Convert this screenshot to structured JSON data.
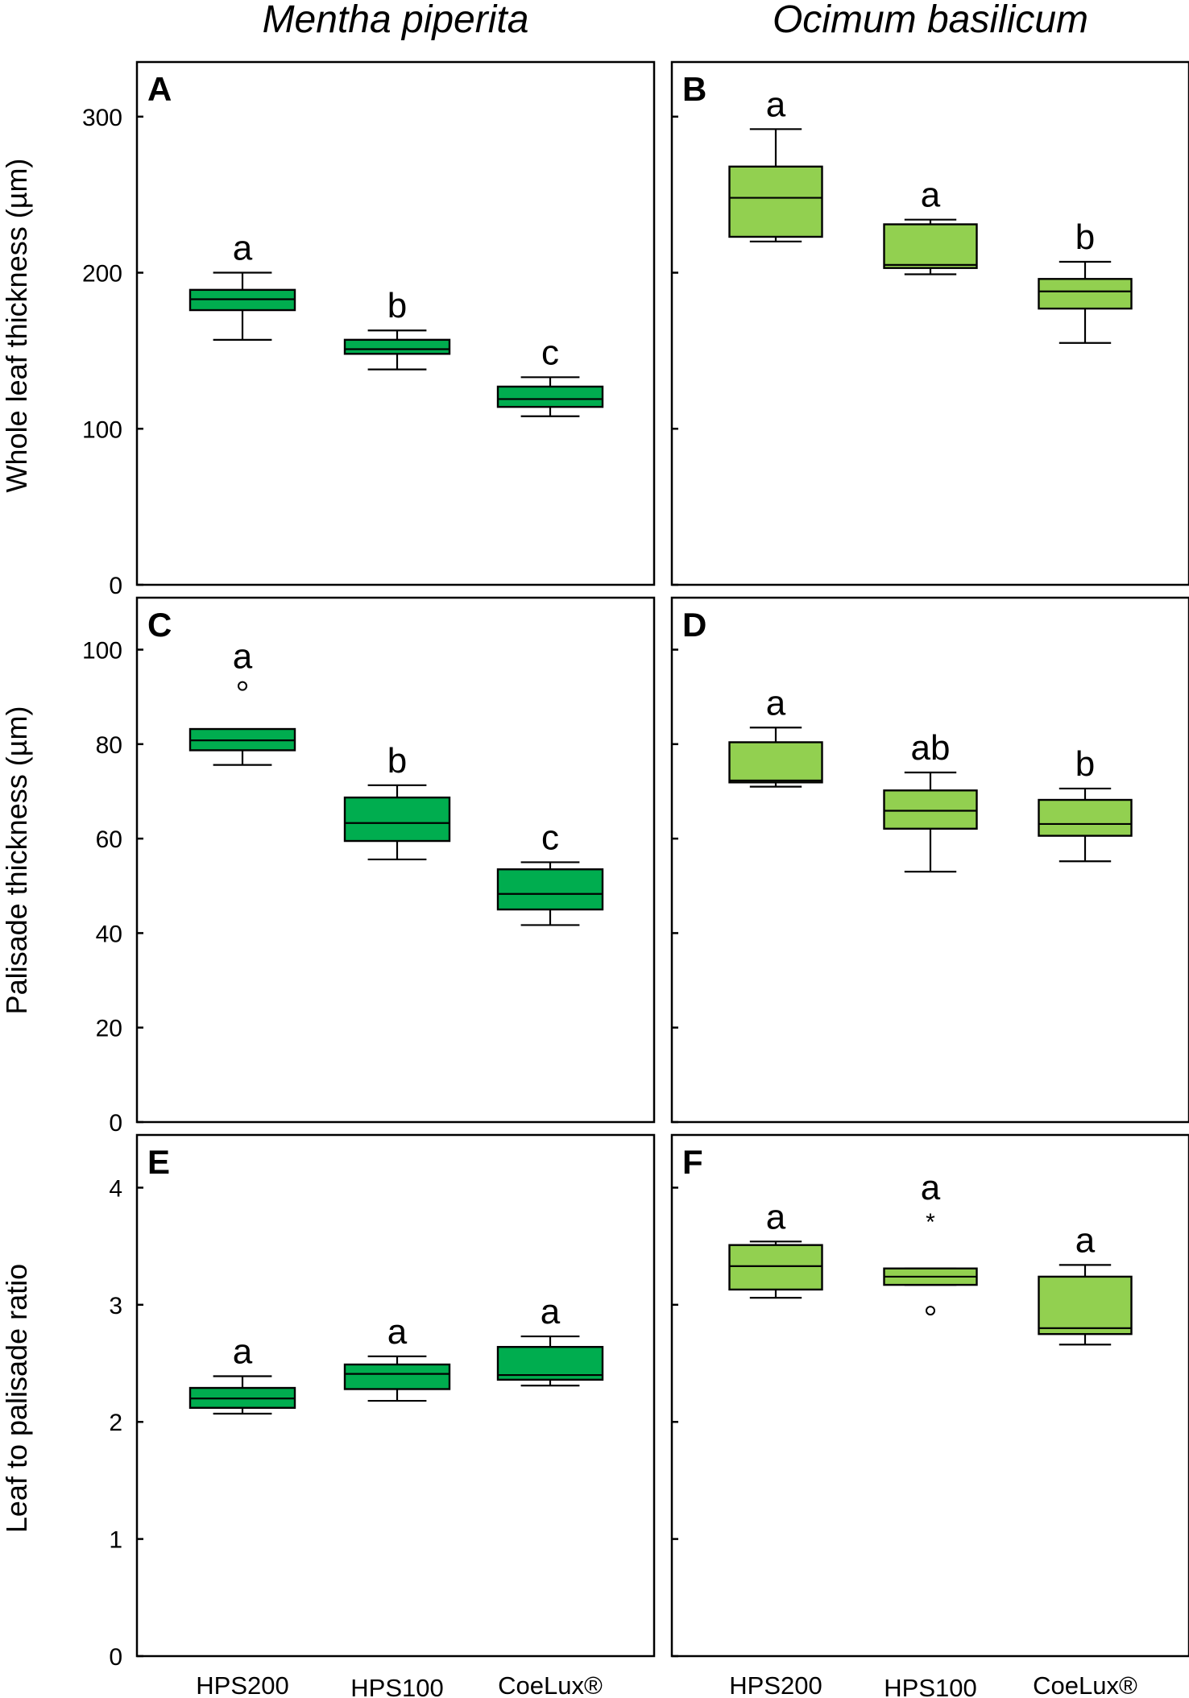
{
  "columns": [
    "Mentha piperita",
    "Ocimum basilicum"
  ],
  "row_ylabels": [
    "Whole leaf thickness (µm)",
    "Palisade thickness (µm)",
    "Leaf to palisade ratio"
  ],
  "x_labels": [
    "HPS200",
    "HPS100",
    "CoeLux®"
  ],
  "colors": {
    "mentha": "#00ad4f",
    "ocimum": "#92d050",
    "line": "#000000"
  },
  "chart_data": [
    {
      "type": "box",
      "panel": "A",
      "species": "Mentha piperita",
      "ylabel": "Whole leaf thickness (µm)",
      "ylim": [
        0,
        335
      ],
      "yticks": [
        0,
        100,
        200,
        300
      ],
      "categories": [
        "HPS200",
        "HPS100",
        "CoeLux®"
      ],
      "boxes": [
        {
          "min": 157,
          "q1": 176,
          "median": 183,
          "q3": 189,
          "max": 200,
          "letter": "a"
        },
        {
          "min": 138,
          "q1": 148,
          "median": 151,
          "q3": 157,
          "max": 163,
          "letter": "b"
        },
        {
          "min": 108,
          "q1": 114,
          "median": 119,
          "q3": 127,
          "max": 133,
          "letter": "c"
        }
      ]
    },
    {
      "type": "box",
      "panel": "B",
      "species": "Ocimum basilicum",
      "ylabel": "Whole leaf thickness (µm)",
      "ylim": [
        0,
        335
      ],
      "yticks": [
        0,
        100,
        200,
        300
      ],
      "categories": [
        "HPS200",
        "HPS100",
        "CoeLux®"
      ],
      "boxes": [
        {
          "min": 220,
          "q1": 223,
          "median": 248,
          "q3": 268,
          "max": 292,
          "letter": "a"
        },
        {
          "min": 199,
          "q1": 203,
          "median": 205,
          "q3": 231,
          "max": 234,
          "letter": "a"
        },
        {
          "min": 155,
          "q1": 177,
          "median": 188,
          "q3": 196,
          "max": 207,
          "letter": "b"
        }
      ]
    },
    {
      "type": "box",
      "panel": "C",
      "species": "Mentha piperita",
      "ylabel": "Palisade thickness (µm)",
      "ylim": [
        0,
        111
      ],
      "yticks": [
        0,
        20,
        40,
        60,
        80,
        100
      ],
      "categories": [
        "HPS200",
        "HPS100",
        "CoeLux®"
      ],
      "boxes": [
        {
          "min": 75.6,
          "q1": 78.7,
          "median": 80.8,
          "q3": 83.2,
          "max": 83.2,
          "letter": "a",
          "outliers": [
            92.3
          ]
        },
        {
          "min": 55.6,
          "q1": 59.5,
          "median": 63.3,
          "q3": 68.7,
          "max": 71.3,
          "letter": "b"
        },
        {
          "min": 41.7,
          "q1": 45.0,
          "median": 48.3,
          "q3": 53.5,
          "max": 55.0,
          "letter": "c"
        }
      ]
    },
    {
      "type": "box",
      "panel": "D",
      "species": "Ocimum basilicum",
      "ylabel": "Palisade thickness (µm)",
      "ylim": [
        0,
        111
      ],
      "yticks": [
        0,
        20,
        40,
        60,
        80,
        100
      ],
      "categories": [
        "HPS200",
        "HPS100",
        "CoeLux®"
      ],
      "boxes": [
        {
          "min": 71.0,
          "q1": 71.9,
          "median": 72.3,
          "q3": 80.4,
          "max": 83.5,
          "letter": "a"
        },
        {
          "min": 53.0,
          "q1": 62.1,
          "median": 65.9,
          "q3": 70.2,
          "max": 74.0,
          "letter": "ab"
        },
        {
          "min": 55.2,
          "q1": 60.6,
          "median": 63.1,
          "q3": 68.2,
          "max": 70.6,
          "letter": "b"
        }
      ]
    },
    {
      "type": "box",
      "panel": "E",
      "species": "Mentha piperita",
      "ylabel": "Leaf to palisade ratio",
      "ylim": [
        0,
        4.45
      ],
      "yticks": [
        0,
        1,
        2,
        3,
        4
      ],
      "categories": [
        "HPS200",
        "HPS100",
        "CoeLux®"
      ],
      "boxes": [
        {
          "min": 2.07,
          "q1": 2.12,
          "median": 2.2,
          "q3": 2.29,
          "max": 2.39,
          "letter": "a"
        },
        {
          "min": 2.18,
          "q1": 2.28,
          "median": 2.41,
          "q3": 2.49,
          "max": 2.56,
          "letter": "a"
        },
        {
          "min": 2.31,
          "q1": 2.36,
          "median": 2.4,
          "q3": 2.64,
          "max": 2.73,
          "letter": "a"
        }
      ]
    },
    {
      "type": "box",
      "panel": "F",
      "species": "Ocimum basilicum",
      "ylabel": "Leaf to palisade ratio",
      "ylim": [
        0,
        4.45
      ],
      "yticks": [
        0,
        1,
        2,
        3,
        4
      ],
      "categories": [
        "HPS200",
        "HPS100",
        "CoeLux®"
      ],
      "boxes": [
        {
          "min": 3.06,
          "q1": 3.13,
          "median": 3.33,
          "q3": 3.51,
          "max": 3.54,
          "letter": "a"
        },
        {
          "min": 3.17,
          "q1": 3.17,
          "median": 3.24,
          "q3": 3.31,
          "max": 3.31,
          "letter": "a",
          "outliers": [
            2.95
          ],
          "extremes": [
            3.75
          ]
        },
        {
          "min": 2.66,
          "q1": 2.75,
          "median": 2.8,
          "q3": 3.24,
          "max": 3.34,
          "letter": "a"
        }
      ]
    }
  ]
}
